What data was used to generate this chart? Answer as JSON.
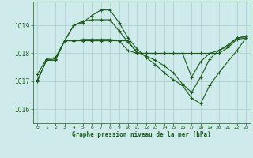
{
  "title": "Graphe pression niveau de la mer (hPa)",
  "bg_color": "#ceeaea",
  "grid_color": "#aacccc",
  "line_color": "#1a5c1a",
  "x_ticks": [
    0,
    1,
    2,
    3,
    4,
    5,
    6,
    7,
    8,
    9,
    10,
    11,
    12,
    13,
    14,
    15,
    16,
    17,
    18,
    19,
    20,
    21,
    22,
    23
  ],
  "y_ticks": [
    1016,
    1017,
    1018,
    1019
  ],
  "ylim": [
    1015.5,
    1019.85
  ],
  "xlim": [
    -0.5,
    23.5
  ],
  "line1": {
    "x": [
      0,
      1,
      2,
      3,
      4,
      5,
      6,
      7,
      8,
      9,
      10,
      11,
      12,
      13,
      14,
      15,
      16,
      17,
      18,
      19,
      20,
      21,
      22,
      23
    ],
    "y": [
      1017.0,
      1017.75,
      1017.75,
      1018.45,
      1019.0,
      1019.1,
      1019.35,
      1019.55,
      1019.55,
      1019.1,
      1018.55,
      1018.15,
      1017.85,
      1017.6,
      1017.3,
      1017.05,
      1016.85,
      1016.4,
      1016.2,
      1016.85,
      1017.3,
      1017.7,
      1018.1,
      1018.55
    ]
  },
  "line2": {
    "x": [
      0,
      1,
      2,
      3,
      4,
      5,
      6,
      7,
      8,
      9,
      10,
      11,
      12,
      13,
      14,
      15,
      16,
      17,
      18,
      19,
      20,
      21,
      22,
      23
    ],
    "y": [
      1017.05,
      1017.75,
      1017.8,
      1018.45,
      1019.0,
      1019.15,
      1019.2,
      1019.2,
      1019.2,
      1018.8,
      1018.4,
      1018.05,
      1017.9,
      1017.75,
      1017.55,
      1017.3,
      1016.9,
      1016.6,
      1017.15,
      1017.8,
      1018.1,
      1018.25,
      1018.55,
      1018.6
    ]
  },
  "line3": {
    "x": [
      2,
      3,
      4,
      5,
      6,
      7,
      8,
      9,
      10,
      11,
      12,
      13,
      14,
      15,
      16,
      17,
      18,
      19,
      20,
      21,
      22,
      23
    ],
    "y": [
      1017.8,
      1018.45,
      1018.45,
      1018.45,
      1018.45,
      1018.45,
      1018.45,
      1018.45,
      1018.45,
      1018.0,
      1018.0,
      1018.0,
      1018.0,
      1018.0,
      1018.0,
      1018.0,
      1018.0,
      1018.0,
      1018.0,
      1018.2,
      1018.5,
      1018.55
    ]
  },
  "line4": {
    "x": [
      0,
      1,
      2,
      3,
      4,
      5,
      6,
      7,
      8,
      9,
      10,
      11,
      12,
      13,
      14,
      15,
      16,
      17,
      18,
      19,
      20,
      21,
      22,
      23
    ],
    "y": [
      1017.25,
      1017.8,
      1017.85,
      1018.45,
      1018.45,
      1018.5,
      1018.5,
      1018.5,
      1018.5,
      1018.45,
      1018.1,
      1018.0,
      1018.0,
      1018.0,
      1018.0,
      1018.0,
      1018.0,
      1017.15,
      1017.7,
      1018.0,
      1018.1,
      1018.3,
      1018.55,
      1018.6
    ]
  }
}
